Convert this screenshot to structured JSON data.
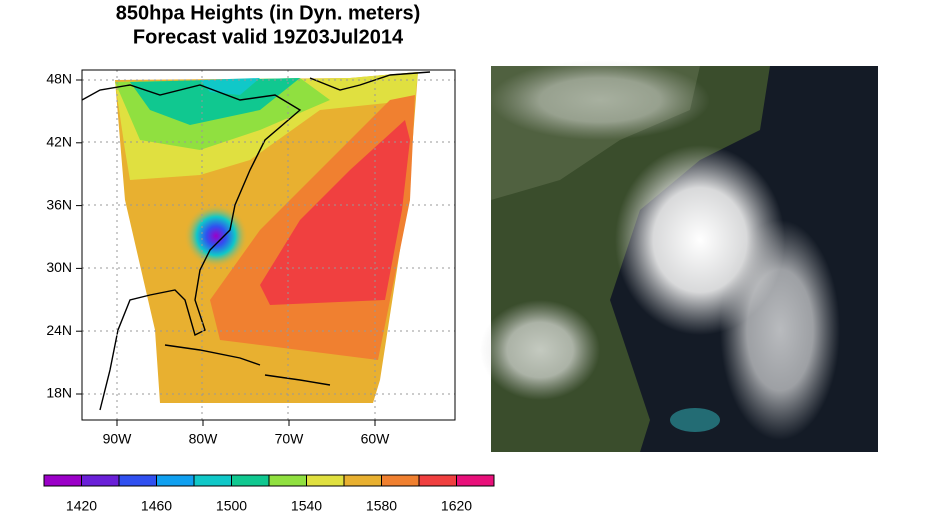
{
  "title": [
    "850hpa Heights (in Dyn. meters)",
    "Forecast valid 19Z03Jul2014"
  ],
  "map": {
    "lat_ticks": [
      "48N",
      "42N",
      "36N",
      "30N",
      "24N",
      "18N"
    ],
    "lon_ticks": [
      "90W",
      "80W",
      "70W",
      "60W"
    ]
  },
  "colorbar": {
    "range": [
      1400,
      1640
    ],
    "ticks": [
      1420,
      1460,
      1500,
      1540,
      1580,
      1620
    ],
    "colors": [
      "#9b00c8",
      "#6a20d8",
      "#3050f0",
      "#10a0f0",
      "#10c8c8",
      "#10c890",
      "#90e040",
      "#e0e040",
      "#e8b030",
      "#f08030",
      "#f04040",
      "#e8107a"
    ]
  }
}
